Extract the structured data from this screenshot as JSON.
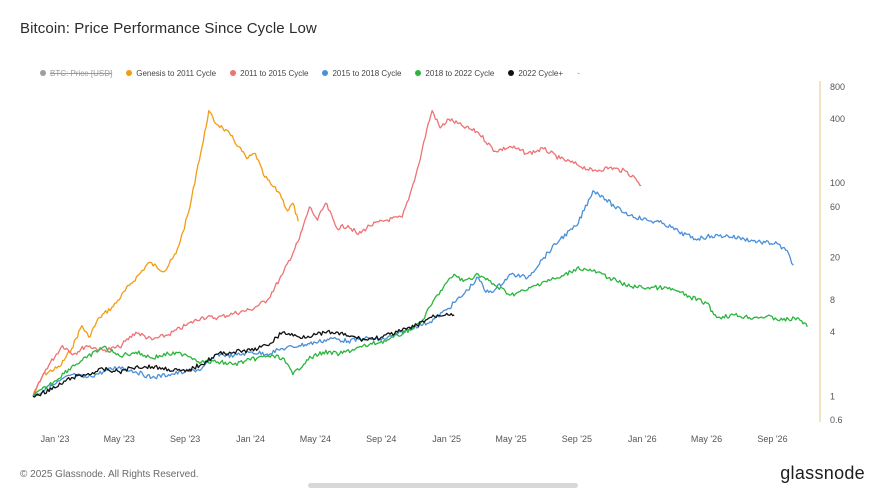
{
  "header": {
    "title": "Bitcoin: Price Performance Since Cycle Low"
  },
  "footer": {
    "copyright": "© 2025 Glassnode. All Rights Reserved.",
    "brand": "glassnode"
  },
  "chart_data": {
    "type": "line",
    "title": "Bitcoin: Price Performance Since Cycle Low",
    "xlabel": "",
    "ylabel": "",
    "y_scale": "log",
    "ylim": [
      0.6,
      800
    ],
    "xlim": [
      "2022-11-21",
      "2026-11-25"
    ],
    "x_ticks": [
      "Jan '23",
      "May '23",
      "Sep '23",
      "Jan '24",
      "May '24",
      "Sep '24",
      "Jan '25",
      "May '25",
      "Sep '25",
      "Jan '26",
      "May '26",
      "Sep '26"
    ],
    "y_ticks": [
      "800",
      "400",
      "100",
      "60",
      "20",
      "8",
      "4",
      "1",
      "0.6"
    ],
    "legend_position": "top-left",
    "grid": false,
    "series": [
      {
        "name": "BTC: Price [USD]",
        "color": "#9e9e9e",
        "hidden": true,
        "points": []
      },
      {
        "name": "Genesis to 2011 Cycle",
        "color": "#f39c12",
        "points": [
          [
            "2022-11-21",
            1.0
          ],
          [
            "2022-12-10",
            1.6
          ],
          [
            "2023-01-10",
            1.9
          ],
          [
            "2023-02-01",
            2.8
          ],
          [
            "2023-02-20",
            4.6
          ],
          [
            "2023-03-05",
            3.6
          ],
          [
            "2023-03-25",
            5.5
          ],
          [
            "2023-04-20",
            7.0
          ],
          [
            "2023-05-20",
            11.0
          ],
          [
            "2023-06-10",
            14.5
          ],
          [
            "2023-06-25",
            18.0
          ],
          [
            "2023-07-25",
            15.0
          ],
          [
            "2023-08-15",
            22.0
          ],
          [
            "2023-08-28",
            35.0
          ],
          [
            "2023-09-10",
            60.0
          ],
          [
            "2023-09-25",
            150.0
          ],
          [
            "2023-10-05",
            250.0
          ],
          [
            "2023-10-15",
            480.0
          ],
          [
            "2023-10-25",
            380.0
          ],
          [
            "2023-11-10",
            330.0
          ],
          [
            "2023-11-25",
            280.0
          ],
          [
            "2023-12-10",
            220.0
          ],
          [
            "2023-12-25",
            170.0
          ],
          [
            "2024-01-10",
            190.0
          ],
          [
            "2024-01-25",
            120.0
          ],
          [
            "2024-02-10",
            95.0
          ],
          [
            "2024-02-25",
            80.0
          ],
          [
            "2024-03-10",
            55.0
          ],
          [
            "2024-03-20",
            65.0
          ],
          [
            "2024-03-30",
            44.0
          ]
        ]
      },
      {
        "name": "2011 to 2015 Cycle",
        "color": "#ef7275",
        "points": [
          [
            "2022-11-21",
            1.0
          ],
          [
            "2022-12-15",
            1.8
          ],
          [
            "2023-01-15",
            3.0
          ],
          [
            "2023-02-05",
            2.5
          ],
          [
            "2023-03-01",
            3.0
          ],
          [
            "2023-04-01",
            2.7
          ],
          [
            "2023-05-01",
            2.9
          ],
          [
            "2023-06-01",
            4.0
          ],
          [
            "2023-07-01",
            3.4
          ],
          [
            "2023-08-01",
            3.8
          ],
          [
            "2023-09-01",
            4.6
          ],
          [
            "2023-10-01",
            5.5
          ],
          [
            "2023-11-01",
            5.5
          ],
          [
            "2023-12-01",
            6.0
          ],
          [
            "2024-01-01",
            6.5
          ],
          [
            "2024-02-01",
            8.0
          ],
          [
            "2024-03-01",
            14.0
          ],
          [
            "2024-04-01",
            30.0
          ],
          [
            "2024-04-20",
            60.0
          ],
          [
            "2024-05-05",
            45.0
          ],
          [
            "2024-05-20",
            65.0
          ],
          [
            "2024-06-10",
            38.0
          ],
          [
            "2024-07-01",
            40.0
          ],
          [
            "2024-07-20",
            33.0
          ],
          [
            "2024-08-10",
            40.0
          ],
          [
            "2024-09-10",
            45.0
          ],
          [
            "2024-10-10",
            48.0
          ],
          [
            "2024-10-25",
            80.0
          ],
          [
            "2024-11-10",
            150.0
          ],
          [
            "2024-11-25",
            320.0
          ],
          [
            "2024-12-05",
            480.0
          ],
          [
            "2024-12-20",
            330.0
          ],
          [
            "2025-01-05",
            400.0
          ],
          [
            "2025-02-01",
            340.0
          ],
          [
            "2025-03-01",
            300.0
          ],
          [
            "2025-04-01",
            200.0
          ],
          [
            "2025-05-01",
            220.0
          ],
          [
            "2025-06-01",
            190.0
          ],
          [
            "2025-07-01",
            210.0
          ],
          [
            "2025-08-01",
            170.0
          ],
          [
            "2025-09-01",
            150.0
          ],
          [
            "2025-10-01",
            130.0
          ],
          [
            "2025-11-01",
            140.0
          ],
          [
            "2025-12-01",
            130.0
          ],
          [
            "2025-12-20",
            110.0
          ],
          [
            "2025-12-30",
            95.0
          ]
        ]
      },
      {
        "name": "2015 to 2018 Cycle",
        "color": "#4a90d9",
        "points": [
          [
            "2022-11-21",
            1.0
          ],
          [
            "2023-01-01",
            1.3
          ],
          [
            "2023-02-01",
            1.6
          ],
          [
            "2023-03-01",
            1.5
          ],
          [
            "2023-04-01",
            1.7
          ],
          [
            "2023-05-01",
            1.9
          ],
          [
            "2023-06-01",
            1.7
          ],
          [
            "2023-07-01",
            1.5
          ],
          [
            "2023-08-01",
            1.6
          ],
          [
            "2023-09-01",
            1.7
          ],
          [
            "2023-10-01",
            1.8
          ],
          [
            "2023-11-01",
            2.5
          ],
          [
            "2023-12-01",
            2.4
          ],
          [
            "2024-01-01",
            2.6
          ],
          [
            "2024-02-01",
            2.5
          ],
          [
            "2024-03-01",
            2.8
          ],
          [
            "2024-04-01",
            3.0
          ],
          [
            "2024-05-01",
            3.2
          ],
          [
            "2024-06-01",
            3.5
          ],
          [
            "2024-07-01",
            3.3
          ],
          [
            "2024-08-01",
            3.5
          ],
          [
            "2024-09-01",
            3.4
          ],
          [
            "2024-10-01",
            3.8
          ],
          [
            "2024-11-01",
            4.5
          ],
          [
            "2024-12-01",
            5.0
          ],
          [
            "2025-01-01",
            6.5
          ],
          [
            "2025-02-01",
            9.0
          ],
          [
            "2025-03-01",
            13.0
          ],
          [
            "2025-03-15",
            9.5
          ],
          [
            "2025-04-01",
            10.0
          ],
          [
            "2025-05-01",
            14.0
          ],
          [
            "2025-06-01",
            13.0
          ],
          [
            "2025-07-01",
            20.0
          ],
          [
            "2025-08-01",
            30.0
          ],
          [
            "2025-09-01",
            40.0
          ],
          [
            "2025-10-01",
            85.0
          ],
          [
            "2025-10-20",
            75.0
          ],
          [
            "2025-11-10",
            60.0
          ],
          [
            "2025-12-10",
            50.0
          ],
          [
            "2026-01-10",
            45.0
          ],
          [
            "2026-02-10",
            42.0
          ],
          [
            "2026-03-10",
            35.0
          ],
          [
            "2026-04-10",
            30.0
          ],
          [
            "2026-05-10",
            32.0
          ],
          [
            "2026-06-10",
            32.0
          ],
          [
            "2026-07-10",
            30.0
          ],
          [
            "2026-08-10",
            28.0
          ],
          [
            "2026-09-10",
            27.0
          ],
          [
            "2026-10-01",
            22.0
          ],
          [
            "2026-10-10",
            17.0
          ]
        ]
      },
      {
        "name": "2018 to 2022 Cycle",
        "color": "#2bb53e",
        "points": [
          [
            "2022-11-21",
            1.0
          ],
          [
            "2023-01-01",
            1.4
          ],
          [
            "2023-02-01",
            1.9
          ],
          [
            "2023-03-01",
            2.3
          ],
          [
            "2023-04-01",
            2.9
          ],
          [
            "2023-05-01",
            2.4
          ],
          [
            "2023-06-01",
            2.6
          ],
          [
            "2023-07-01",
            2.3
          ],
          [
            "2023-08-01",
            2.5
          ],
          [
            "2023-09-01",
            2.5
          ],
          [
            "2023-10-01",
            2.1
          ],
          [
            "2023-11-01",
            2.1
          ],
          [
            "2023-12-01",
            2.0
          ],
          [
            "2024-01-01",
            2.2
          ],
          [
            "2024-02-01",
            2.4
          ],
          [
            "2024-03-01",
            2.3
          ],
          [
            "2024-03-20",
            1.6
          ],
          [
            "2024-04-15",
            2.2
          ],
          [
            "2024-05-15",
            2.6
          ],
          [
            "2024-06-15",
            2.5
          ],
          [
            "2024-07-15",
            2.8
          ],
          [
            "2024-08-15",
            3.1
          ],
          [
            "2024-09-15",
            3.4
          ],
          [
            "2024-10-15",
            4.0
          ],
          [
            "2024-11-15",
            5.0
          ],
          [
            "2024-12-15",
            9.0
          ],
          [
            "2025-01-15",
            14.0
          ],
          [
            "2025-02-01",
            12.0
          ],
          [
            "2025-03-01",
            14.0
          ],
          [
            "2025-04-01",
            11.0
          ],
          [
            "2025-05-01",
            9.0
          ],
          [
            "2025-06-01",
            10.0
          ],
          [
            "2025-07-01",
            12.0
          ],
          [
            "2025-08-01",
            13.0
          ],
          [
            "2025-09-01",
            16.0
          ],
          [
            "2025-10-01",
            15.0
          ],
          [
            "2025-11-01",
            13.0
          ],
          [
            "2025-12-01",
            11.0
          ],
          [
            "2026-01-01",
            10.5
          ],
          [
            "2026-02-01",
            10.5
          ],
          [
            "2026-03-01",
            10.0
          ],
          [
            "2026-04-01",
            8.5
          ],
          [
            "2026-05-01",
            7.5
          ],
          [
            "2026-05-20",
            5.5
          ],
          [
            "2026-06-20",
            5.8
          ],
          [
            "2026-07-20",
            5.5
          ],
          [
            "2026-08-20",
            5.6
          ],
          [
            "2026-09-20",
            5.2
          ],
          [
            "2026-10-20",
            5.4
          ],
          [
            "2026-11-05",
            4.5
          ]
        ]
      },
      {
        "name": "2022 Cycle+",
        "color": "#111111",
        "points": [
          [
            "2022-11-21",
            1.0
          ],
          [
            "2023-01-01",
            1.2
          ],
          [
            "2023-02-01",
            1.5
          ],
          [
            "2023-03-01",
            1.6
          ],
          [
            "2023-04-01",
            1.8
          ],
          [
            "2023-05-01",
            1.7
          ],
          [
            "2023-06-01",
            1.9
          ],
          [
            "2023-07-01",
            1.9
          ],
          [
            "2023-08-01",
            1.8
          ],
          [
            "2023-09-01",
            1.7
          ],
          [
            "2023-10-01",
            2.0
          ],
          [
            "2023-11-01",
            2.5
          ],
          [
            "2023-12-01",
            2.6
          ],
          [
            "2024-01-01",
            2.7
          ],
          [
            "2024-02-01",
            3.0
          ],
          [
            "2024-03-01",
            4.0
          ],
          [
            "2024-04-01",
            3.6
          ],
          [
            "2024-05-01",
            3.8
          ],
          [
            "2024-06-01",
            4.0
          ],
          [
            "2024-07-01",
            3.7
          ],
          [
            "2024-08-01",
            3.4
          ],
          [
            "2024-09-01",
            3.6
          ],
          [
            "2024-10-01",
            4.0
          ],
          [
            "2024-11-01",
            4.5
          ],
          [
            "2024-12-01",
            5.5
          ],
          [
            "2025-01-01",
            6.0
          ],
          [
            "2025-01-15",
            5.8
          ]
        ]
      }
    ]
  }
}
